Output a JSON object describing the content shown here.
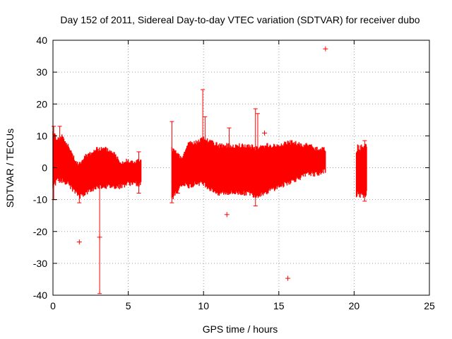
{
  "chart_data": {
    "type": "scatter",
    "title": "Day 152 of 2011, Sidereal Day-to-day VTEC variation (SDTVAR) for receiver dubo",
    "xlabel": "GPS time / hours",
    "ylabel": "SDTVAR / TECUs",
    "xlim": [
      0,
      25
    ],
    "ylim": [
      -40,
      40
    ],
    "x_ticks": [
      0,
      5,
      10,
      15,
      20,
      25
    ],
    "y_ticks": [
      -40,
      -30,
      -20,
      -10,
      0,
      10,
      20,
      30,
      40
    ],
    "x_tick_labels": [
      "0",
      "5",
      "10",
      "15",
      "20",
      "25"
    ],
    "y_tick_labels": [
      "-40",
      "-30",
      "-20",
      "-10",
      "0",
      "10",
      "20",
      "30",
      "40"
    ],
    "grid": true,
    "marker": "+",
    "color": "#ff0000",
    "series": [
      {
        "name": "SDTVAR",
        "envelope": [
          {
            "x": 0.0,
            "lo": -6,
            "hi": 11
          },
          {
            "x": 0.3,
            "lo": -4,
            "hi": 9
          },
          {
            "x": 0.6,
            "lo": -4,
            "hi": 10
          },
          {
            "x": 1.0,
            "lo": -5,
            "hi": 7
          },
          {
            "x": 1.5,
            "lo": -8,
            "hi": 2
          },
          {
            "x": 1.8,
            "lo": -9,
            "hi": 1
          },
          {
            "x": 2.2,
            "lo": -8,
            "hi": 4
          },
          {
            "x": 2.6,
            "lo": -7,
            "hi": 5
          },
          {
            "x": 3.0,
            "lo": -6,
            "hi": 6
          },
          {
            "x": 3.5,
            "lo": -6,
            "hi": 6
          },
          {
            "x": 4.0,
            "lo": -6,
            "hi": 5
          },
          {
            "x": 4.5,
            "lo": -6,
            "hi": 2
          },
          {
            "x": 5.0,
            "lo": -5,
            "hi": 2
          },
          {
            "x": 5.5,
            "lo": -5,
            "hi": 2
          },
          {
            "x": 5.8,
            "lo": -5,
            "hi": 2
          },
          {
            "x": 7.9,
            "lo": -10,
            "hi": 6
          },
          {
            "x": 8.3,
            "lo": -7,
            "hi": 4
          },
          {
            "x": 8.6,
            "lo": -5,
            "hi": 3
          },
          {
            "x": 9.0,
            "lo": -6,
            "hi": 8
          },
          {
            "x": 9.5,
            "lo": -5,
            "hi": 8
          },
          {
            "x": 10.0,
            "lo": -5,
            "hi": 9
          },
          {
            "x": 10.5,
            "lo": -7,
            "hi": 8
          },
          {
            "x": 11.0,
            "lo": -8,
            "hi": 7
          },
          {
            "x": 11.5,
            "lo": -8,
            "hi": 7
          },
          {
            "x": 12.0,
            "lo": -8,
            "hi": 7
          },
          {
            "x": 12.5,
            "lo": -8,
            "hi": 7
          },
          {
            "x": 13.0,
            "lo": -8,
            "hi": 7
          },
          {
            "x": 13.5,
            "lo": -9,
            "hi": 6
          },
          {
            "x": 14.0,
            "lo": -8,
            "hi": 7
          },
          {
            "x": 14.5,
            "lo": -7,
            "hi": 7
          },
          {
            "x": 15.0,
            "lo": -6,
            "hi": 7
          },
          {
            "x": 15.5,
            "lo": -5,
            "hi": 8
          },
          {
            "x": 16.0,
            "lo": -4,
            "hi": 8
          },
          {
            "x": 16.5,
            "lo": -3,
            "hi": 7
          },
          {
            "x": 17.0,
            "lo": -2,
            "hi": 7
          },
          {
            "x": 17.5,
            "lo": -2,
            "hi": 6
          },
          {
            "x": 18.1,
            "lo": -1,
            "hi": 6
          },
          {
            "x": 20.2,
            "lo": -7,
            "hi": 5
          },
          {
            "x": 20.5,
            "lo": -8,
            "hi": 6
          },
          {
            "x": 20.8,
            "lo": -9,
            "hi": 7
          }
        ],
        "bars": [
          {
            "x": 0.05,
            "lo": -10,
            "hi": 13
          },
          {
            "x": 0.45,
            "lo": -4,
            "hi": 13
          },
          {
            "x": 1.75,
            "lo": -11,
            "hi": 0
          },
          {
            "x": 3.1,
            "lo": -39.5,
            "hi": 0
          },
          {
            "x": 5.7,
            "lo": -8,
            "hi": 5
          },
          {
            "x": 7.9,
            "lo": -11,
            "hi": 14.5
          },
          {
            "x": 8.3,
            "lo": -8,
            "hi": 2
          },
          {
            "x": 9.95,
            "lo": 0,
            "hi": 24.5
          },
          {
            "x": 10.1,
            "lo": 0,
            "hi": 16
          },
          {
            "x": 11.7,
            "lo": -4,
            "hi": 12.5
          },
          {
            "x": 13.45,
            "lo": -12,
            "hi": 18.5
          },
          {
            "x": 13.6,
            "lo": 0,
            "hi": 17
          },
          {
            "x": 20.7,
            "lo": -10.5,
            "hi": 8.5
          }
        ],
        "outliers": [
          {
            "x": 1.75,
            "y": -23.3
          },
          {
            "x": 3.1,
            "y": -21.8
          },
          {
            "x": 11.55,
            "y": -14.7
          },
          {
            "x": 14.05,
            "y": 10.9
          },
          {
            "x": 15.6,
            "y": -34.7
          },
          {
            "x": 18.1,
            "y": 37.3
          }
        ]
      }
    ]
  }
}
